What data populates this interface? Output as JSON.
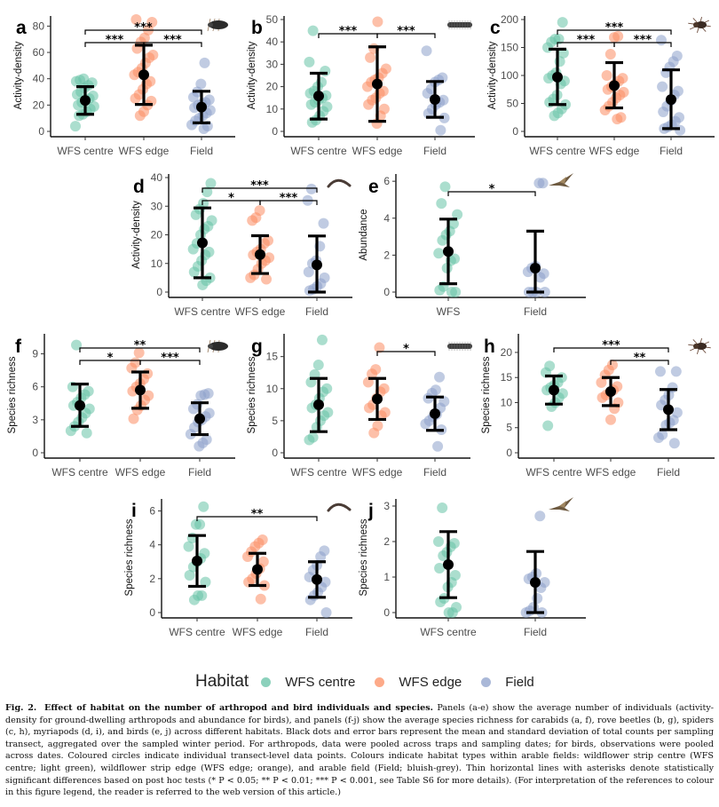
{
  "legend": {
    "title": "Habitat",
    "items": [
      {
        "label": "WFS centre",
        "color": "#66c2a5"
      },
      {
        "label": "WFS edge",
        "color": "#fc8d62"
      },
      {
        "label": "Field",
        "color": "#8da0cb"
      }
    ]
  },
  "caption": {
    "label": "Fig. 2.",
    "title": "Effect of habitat on the number of arthropod and bird individuals and species.",
    "body": "Panels (a-e) show the average number of individuals (activity-density for ground-dwelling arthropods and abundance for birds), and panels (f-j) show the average species richness for carabids (a, f), rove beetles (b, g), spiders (c, h), myriapods (d, i), and birds (e, j) across different habitats. Black dots and error bars represent the mean and standard deviation of total counts per sampling transect, aggregated over the sampled winter period. For arthropods, data were pooled across traps and sampling dates; for birds, observations were pooled across dates. Coloured circles indicate individual transect-level data points. Colours indicate habitat types within arable fields: wildflower strip centre (WFS centre; light green), wildflower strip edge (WFS edge; orange), and arable field (Field; bluish-grey). Thin horizontal lines with asterisks denote statistically significant differences based on post hoc tests (* P < 0.05; ** P < 0.01; *** P < 0.001, see Table S6 for more details). (For interpretation of the references to colour in this figure legend, the reader is referred to the web version of this article.)"
  },
  "chart_data": [
    {
      "panel": "a",
      "type": "scatter",
      "taxon_icon": "carabid-beetle-icon",
      "ylabel": "Activity-density",
      "ylim": [
        0,
        85
      ],
      "yticks": [
        0,
        20,
        40,
        60,
        80
      ],
      "categories": [
        "WFS centre",
        "WFS edge",
        "Field"
      ],
      "series": [
        {
          "name": "WFS centre",
          "mean": 23.5,
          "sd_low": 13,
          "sd_high": 34,
          "points": [
            4,
            12,
            13,
            15,
            17,
            19,
            20,
            22,
            24,
            25,
            27,
            28,
            30,
            33,
            35,
            37,
            38,
            39,
            40
          ]
        },
        {
          "name": "WFS edge",
          "mean": 43,
          "sd_low": 20.5,
          "sd_high": 65.5,
          "points": [
            12,
            15,
            20,
            23,
            25,
            28,
            32,
            36,
            38,
            43,
            45,
            48,
            52,
            56,
            58,
            63,
            68,
            71,
            77,
            83,
            85
          ]
        },
        {
          "name": "Field",
          "mean": 18.5,
          "sd_low": 6.5,
          "sd_high": 30.5,
          "points": [
            2,
            4,
            5,
            8,
            10,
            12,
            14,
            16,
            18,
            20,
            21,
            22,
            24,
            26,
            30,
            36,
            52
          ]
        }
      ],
      "significance": [
        {
          "from": "WFS centre",
          "to": "Field",
          "label": "***",
          "level": 2
        },
        {
          "from": "WFS centre",
          "to": "WFS edge",
          "label": "***",
          "level": 1
        },
        {
          "from": "WFS edge",
          "to": "Field",
          "label": "***",
          "level": 1
        }
      ]
    },
    {
      "panel": "b",
      "type": "scatter",
      "taxon_icon": "rove-beetle-icon",
      "ylabel": "Activity-density",
      "ylim": [
        0,
        50
      ],
      "yticks": [
        0,
        10,
        20,
        30,
        40,
        50
      ],
      "categories": [
        "WFS centre",
        "WFS edge",
        "Field"
      ],
      "series": [
        {
          "name": "WFS centre",
          "mean": 15.8,
          "sd_low": 5.5,
          "sd_high": 26,
          "points": [
            4,
            5,
            7,
            9,
            11,
            12,
            13,
            14,
            15,
            16,
            17,
            18,
            20,
            22,
            27,
            31,
            45
          ]
        },
        {
          "name": "WFS edge",
          "mean": 21.2,
          "sd_low": 4.5,
          "sd_high": 37.8,
          "points": [
            3.5,
            7,
            10,
            12,
            14,
            15,
            17,
            18,
            20,
            22,
            23,
            24,
            26,
            28,
            33,
            37,
            49
          ]
        },
        {
          "name": "Field",
          "mean": 14.3,
          "sd_low": 6.3,
          "sd_high": 22.3,
          "points": [
            0.5,
            6,
            8,
            10,
            12,
            13,
            14,
            17,
            19,
            22,
            23,
            24,
            36
          ]
        }
      ],
      "significance": [
        {
          "from": "WFS centre",
          "to": "WFS edge",
          "label": "***",
          "level": 1
        },
        {
          "from": "WFS edge",
          "to": "Field",
          "label": "***",
          "level": 1
        }
      ]
    },
    {
      "panel": "c",
      "type": "scatter",
      "taxon_icon": "spider-icon",
      "ylabel": "Activity-density",
      "ylim": [
        0,
        200
      ],
      "yticks": [
        0,
        50,
        100,
        150,
        200
      ],
      "categories": [
        "WFS centre",
        "WFS edge",
        "Field"
      ],
      "series": [
        {
          "name": "WFS centre",
          "mean": 97,
          "sd_low": 48,
          "sd_high": 147,
          "points": [
            28,
            33,
            40,
            48,
            52,
            58,
            65,
            85,
            90,
            95,
            100,
            105,
            125,
            140,
            150,
            160,
            165,
            165,
            195
          ]
        },
        {
          "name": "WFS edge",
          "mean": 82,
          "sd_low": 42,
          "sd_high": 123,
          "points": [
            22,
            25,
            38,
            45,
            52,
            60,
            65,
            70,
            75,
            80,
            85,
            90,
            95,
            100,
            138,
            168,
            170
          ]
        },
        {
          "name": "Field",
          "mean": 57,
          "sd_low": 5,
          "sd_high": 110,
          "points": [
            2,
            5,
            8,
            12,
            18,
            25,
            35,
            45,
            55,
            65,
            72,
            80,
            105,
            115,
            125,
            135,
            163
          ]
        }
      ],
      "significance": [
        {
          "from": "WFS centre",
          "to": "Field",
          "label": "***",
          "level": 2
        },
        {
          "from": "WFS centre",
          "to": "WFS edge",
          "label": "***",
          "level": 1
        },
        {
          "from": "WFS edge",
          "to": "Field",
          "label": "***",
          "level": 1
        }
      ]
    },
    {
      "panel": "d",
      "type": "scatter",
      "taxon_icon": "myriapod-icon",
      "ylabel": "Activity-density",
      "ylim": [
        0,
        40
      ],
      "yticks": [
        0,
        10,
        20,
        30,
        40
      ],
      "categories": [
        "WFS centre",
        "WFS edge",
        "Field"
      ],
      "series": [
        {
          "name": "WFS centre",
          "mean": 17.2,
          "sd_low": 5,
          "sd_high": 29.4,
          "points": [
            2.5,
            4,
            5,
            7,
            9,
            11,
            13,
            14,
            15,
            17,
            20,
            22,
            23,
            25,
            27,
            29,
            31,
            35,
            38
          ]
        },
        {
          "name": "WFS edge",
          "mean": 13.1,
          "sd_low": 6.5,
          "sd_high": 19.7,
          "points": [
            4.5,
            5,
            6,
            8,
            10,
            11,
            12,
            13,
            14,
            15,
            17,
            18,
            25,
            26,
            28.5
          ]
        },
        {
          "name": "Field",
          "mean": 9.5,
          "sd_low": 0,
          "sd_high": 19.6,
          "points": [
            0.5,
            1,
            2,
            3,
            5,
            7,
            10,
            11,
            16,
            24,
            32,
            36
          ]
        }
      ],
      "significance": [
        {
          "from": "WFS centre",
          "to": "Field",
          "label": "***",
          "level": 2
        },
        {
          "from": "WFS centre",
          "to": "WFS edge",
          "label": "*",
          "level": 1
        },
        {
          "from": "WFS edge",
          "to": "Field",
          "label": "***",
          "level": 1
        }
      ]
    },
    {
      "panel": "e",
      "type": "scatter",
      "taxon_icon": "bird-icon",
      "ylabel": "Abundance",
      "ylim": [
        0,
        6.2
      ],
      "yticks": [
        0,
        2,
        4,
        6
      ],
      "categories": [
        "WFS",
        "Field"
      ],
      "series": [
        {
          "name": "WFS centre",
          "mean": 2.2,
          "sd_low": 0.45,
          "sd_high": 3.95,
          "points": [
            0,
            0,
            0.1,
            0.3,
            1.3,
            1.7,
            1.8,
            2.1,
            2.8,
            3.1,
            3.3,
            3.7,
            4.2,
            4.8,
            5.7
          ]
        },
        {
          "name": "Field",
          "mean": 1.3,
          "sd_low": 0,
          "sd_high": 3.3,
          "points": [
            0,
            0,
            0,
            0,
            0.8,
            1.0,
            1.1,
            1.3,
            1.4,
            5.9,
            5.9
          ]
        }
      ],
      "significance": [
        {
          "from": "WFS",
          "to": "Field",
          "label": "*",
          "level": 1
        }
      ]
    },
    {
      "panel": "f",
      "type": "scatter",
      "taxon_icon": "carabid-beetle-icon",
      "ylabel": "Species richness",
      "ylim": [
        0,
        10.5
      ],
      "yticks": [
        0,
        3,
        6,
        9
      ],
      "categories": [
        "WFS centre",
        "WFS edge",
        "Field"
      ],
      "series": [
        {
          "name": "WFS centre",
          "mean": 4.3,
          "sd_low": 2.4,
          "sd_high": 6.25,
          "points": [
            1.8,
            2.0,
            2.4,
            2.8,
            3.2,
            3.6,
            4.0,
            4.3,
            4.6,
            5.0,
            5.3,
            5.6,
            6.0,
            9.8
          ]
        },
        {
          "name": "WFS edge",
          "mean": 5.7,
          "sd_low": 4.05,
          "sd_high": 7.35,
          "points": [
            3.1,
            3.9,
            4.3,
            4.8,
            5.2,
            5.6,
            6.0,
            6.3,
            6.7,
            7.2,
            7.7,
            8.2,
            9.1
          ]
        },
        {
          "name": "Field",
          "mean": 3.1,
          "sd_low": 1.65,
          "sd_high": 4.55,
          "points": [
            0.6,
            0.9,
            1.2,
            1.7,
            2.3,
            2.8,
            3.0,
            3.3,
            3.6,
            4.0,
            4.4,
            5.2,
            5.3,
            5.4
          ]
        }
      ],
      "significance": [
        {
          "from": "WFS centre",
          "to": "Field",
          "label": "**",
          "level": 2
        },
        {
          "from": "WFS centre",
          "to": "WFS edge",
          "label": "*",
          "level": 1
        },
        {
          "from": "WFS edge",
          "to": "Field",
          "label": "***",
          "level": 1
        }
      ]
    },
    {
      "panel": "g",
      "type": "scatter",
      "taxon_icon": "rove-beetle-icon",
      "ylabel": "Species richness",
      "ylim": [
        0,
        18
      ],
      "yticks": [
        0,
        5,
        10,
        15
      ],
      "categories": [
        "WFS centre",
        "WFS edge",
        "Field"
      ],
      "series": [
        {
          "name": "WFS centre",
          "mean": 7.5,
          "sd_low": 3.3,
          "sd_high": 11.6,
          "points": [
            2,
            2.4,
            4,
            5,
            5.8,
            6.3,
            7,
            7.5,
            8.5,
            9.5,
            10,
            11,
            12.2,
            13.7,
            17.6
          ]
        },
        {
          "name": "WFS edge",
          "mean": 8.4,
          "sd_low": 5.2,
          "sd_high": 11.6,
          "points": [
            3.1,
            4.2,
            5.8,
            6.3,
            7,
            7.5,
            8.5,
            9.5,
            10,
            11,
            12.3,
            13,
            16.4
          ]
        },
        {
          "name": "Field",
          "mean": 6.1,
          "sd_low": 3.5,
          "sd_high": 8.7,
          "points": [
            1,
            3.6,
            4.5,
            5,
            5.6,
            6,
            7,
            8,
            8.5,
            9.3,
            9.8,
            11.8
          ]
        }
      ],
      "significance": [
        {
          "from": "WFS edge",
          "to": "Field",
          "label": "*",
          "level": 1
        }
      ]
    },
    {
      "panel": "h",
      "type": "scatter",
      "taxon_icon": "spider-icon",
      "ylabel": "Species richness",
      "ylim": [
        0,
        23
      ],
      "yticks": [
        0,
        5,
        10,
        15,
        20
      ],
      "categories": [
        "WFS centre",
        "WFS edge",
        "Field"
      ],
      "series": [
        {
          "name": "WFS centre",
          "mean": 12.5,
          "sd_low": 9.7,
          "sd_high": 15.3,
          "points": [
            5.4,
            9.2,
            10,
            11,
            11.8,
            12.5,
            13,
            13.5,
            14,
            15,
            16,
            17.3
          ]
        },
        {
          "name": "WFS edge",
          "mean": 12.2,
          "sd_low": 9.4,
          "sd_high": 15,
          "points": [
            6.6,
            8.8,
            10,
            11,
            11.5,
            12,
            12.5,
            13.2,
            14,
            15.5,
            16.5,
            17.5
          ]
        },
        {
          "name": "Field",
          "mean": 8.6,
          "sd_low": 4.6,
          "sd_high": 12.6,
          "points": [
            1.9,
            3,
            3.6,
            5.5,
            6,
            6.5,
            8,
            9.5,
            10.5,
            11.5,
            13,
            16.2,
            16.2
          ]
        }
      ],
      "significance": [
        {
          "from": "WFS centre",
          "to": "Field",
          "label": "***",
          "level": 2
        },
        {
          "from": "WFS edge",
          "to": "Field",
          "label": "**",
          "level": 1
        }
      ]
    },
    {
      "panel": "i",
      "type": "scatter",
      "taxon_icon": "myriapod-icon",
      "ylabel": "Species richness",
      "ylim": [
        0,
        6.5
      ],
      "yticks": [
        0,
        2,
        4,
        6
      ],
      "categories": [
        "WFS centre",
        "WFS edge",
        "Field"
      ],
      "series": [
        {
          "name": "WFS centre",
          "mean": 3.05,
          "sd_low": 1.55,
          "sd_high": 4.55,
          "points": [
            0.75,
            1.0,
            1.0,
            1.8,
            2.2,
            2.7,
            3.0,
            3.2,
            3.5,
            3.9,
            4.4,
            5.2,
            5.2,
            6.25
          ]
        },
        {
          "name": "WFS edge",
          "mean": 2.55,
          "sd_low": 1.6,
          "sd_high": 3.5,
          "points": [
            0.8,
            1.6,
            1.8,
            2.0,
            2.3,
            2.6,
            3.0,
            3.3,
            3.6,
            3.9,
            4.1,
            4.3
          ]
        },
        {
          "name": "Field",
          "mean": 1.95,
          "sd_low": 0.9,
          "sd_high": 3.0,
          "points": [
            0,
            0.75,
            1.0,
            1.2,
            1.5,
            1.8,
            2.1,
            2.5,
            2.8,
            3.3,
            3.65
          ]
        }
      ],
      "significance": [
        {
          "from": "WFS centre",
          "to": "Field",
          "label": "**",
          "level": 1
        }
      ]
    },
    {
      "panel": "j",
      "type": "scatter",
      "taxon_icon": "bird-icon",
      "ylabel": "Species richness",
      "ylim": [
        0,
        3.1
      ],
      "yticks": [
        0,
        1,
        2,
        3
      ],
      "categories": [
        "WFS centre",
        "Field"
      ],
      "series": [
        {
          "name": "WFS centre",
          "mean": 1.35,
          "sd_low": 0.42,
          "sd_high": 2.28,
          "points": [
            0,
            0,
            0.15,
            0.3,
            0.4,
            0.72,
            0.85,
            1.05,
            1.25,
            1.6,
            1.7,
            1.85,
            1.95,
            2.0,
            2.95
          ]
        },
        {
          "name": "Field",
          "mean": 0.85,
          "sd_low": 0,
          "sd_high": 1.72,
          "points": [
            0,
            0,
            0.05,
            0.15,
            0.4,
            0.7,
            0.85,
            0.95,
            1.0,
            1.1,
            2.72
          ]
        }
      ],
      "significance": []
    }
  ]
}
